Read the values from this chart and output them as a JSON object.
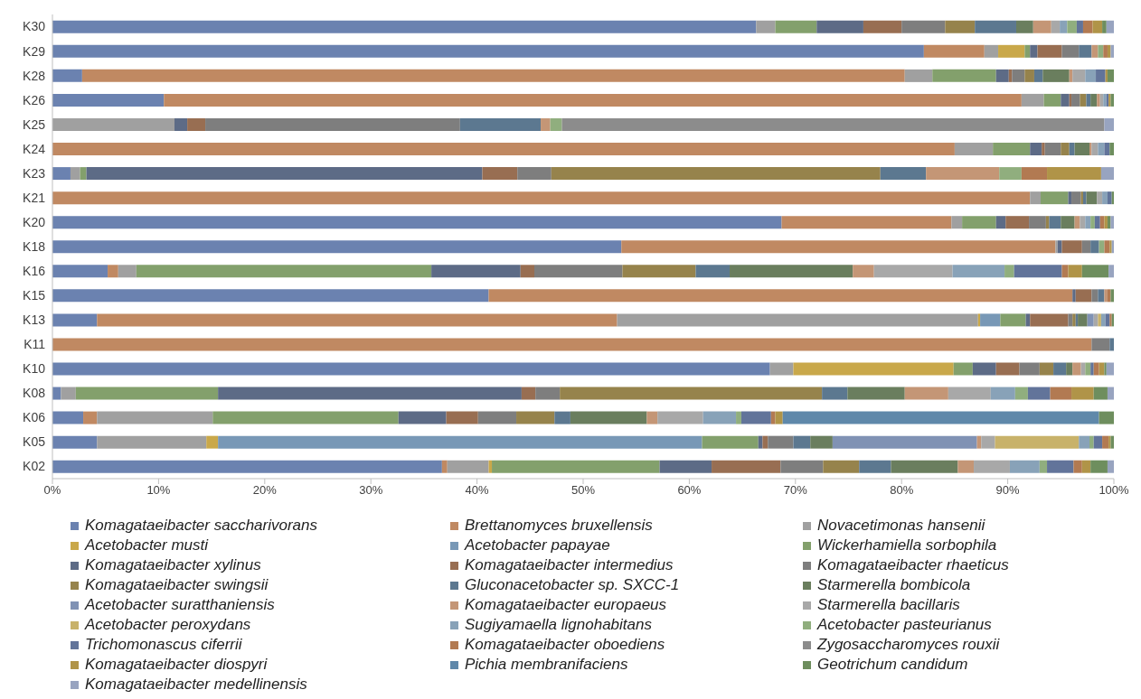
{
  "chart_data": {
    "type": "bar",
    "orientation": "horizontal",
    "stacked": true,
    "legend": "bottom",
    "categories": [
      "K30",
      "K29",
      "K28",
      "K26",
      "K25",
      "K24",
      "K23",
      "K21",
      "K20",
      "K18",
      "K16",
      "K15",
      "K13",
      "K11",
      "K10",
      "K08",
      "K06",
      "K05",
      "K02"
    ],
    "xlim": [
      0,
      100
    ],
    "xticks": [
      {
        "value": 0,
        "label": "0%"
      },
      {
        "value": 10,
        "label": "10%"
      },
      {
        "value": 20,
        "label": "20%"
      },
      {
        "value": 30,
        "label": "30%"
      },
      {
        "value": 40,
        "label": "40%"
      },
      {
        "value": 50,
        "label": "50%"
      },
      {
        "value": 60,
        "label": "60%"
      },
      {
        "value": 70,
        "label": "70%"
      },
      {
        "value": 80,
        "label": "80%"
      },
      {
        "value": 90,
        "label": "90%"
      },
      {
        "value": 100,
        "label": "100%"
      }
    ],
    "series": [
      {
        "name": "Komagataeibacter saccharivorans",
        "color": "#6b82b0",
        "values": [
          66.3,
          82.1,
          2.8,
          10.5,
          null,
          null,
          1.7,
          null,
          68.7,
          53.6,
          5.2,
          41.1,
          4.2,
          null,
          67.6,
          0.8,
          2.9,
          4.2,
          36.7
        ]
      },
      {
        "name": "Brettanomyces bruxellensis",
        "color": "#c08962",
        "values": [
          null,
          5.7,
          77.5,
          80.8,
          null,
          85.0,
          null,
          92.1,
          16.0,
          40.9,
          1.0,
          55.0,
          49.0,
          97.9,
          null,
          null,
          1.3,
          null,
          0.5
        ]
      },
      {
        "name": "Novacetimonas hansenii",
        "color": "#a0a0a0",
        "values": [
          1.8,
          1.3,
          2.6,
          2.1,
          11.5,
          3.6,
          0.9,
          1.0,
          1.0,
          0.2,
          1.7,
          null,
          34.0,
          null,
          2.2,
          1.4,
          10.9,
          10.3,
          3.9
        ]
      },
      {
        "name": "Acetobacter musti",
        "color": "#c9a84a",
        "values": [
          null,
          2.5,
          null,
          null,
          null,
          null,
          null,
          null,
          null,
          null,
          null,
          null,
          0.2,
          null,
          15.1,
          null,
          null,
          1.1,
          0.3
        ]
      },
      {
        "name": "Acetobacter papayae",
        "color": "#7898b6",
        "values": [
          null,
          null,
          null,
          null,
          null,
          null,
          null,
          null,
          null,
          null,
          null,
          null,
          1.9,
          null,
          null,
          null,
          null,
          45.6,
          null
        ]
      },
      {
        "name": "Wickerhamiella sorbophila",
        "color": "#83a06c",
        "values": [
          3.9,
          0.5,
          6.0,
          1.6,
          null,
          3.5,
          0.6,
          2.6,
          3.2,
          null,
          27.8,
          null,
          2.4,
          null,
          1.8,
          13.4,
          17.5,
          5.3,
          15.8
        ]
      },
      {
        "name": "Komagataeibacter xylinus",
        "color": "#5d6b86",
        "values": [
          4.4,
          0.7,
          1.2,
          0.8,
          1.2,
          1.1,
          37.3,
          0.3,
          0.9,
          0.4,
          8.4,
          0.3,
          0.4,
          null,
          2.2,
          28.6,
          4.5,
          0.4,
          4.9
        ]
      },
      {
        "name": "Komagataeibacter intermedius",
        "color": "#986e52",
        "values": [
          3.6,
          2.3,
          0.3,
          0.2,
          1.7,
          0.3,
          3.3,
          null,
          2.2,
          1.9,
          1.3,
          1.5,
          3.6,
          null,
          2.2,
          1.3,
          3.0,
          0.5,
          6.5
        ]
      },
      {
        "name": "Komagataeibacter rhaeticus",
        "color": "#7e7e7e",
        "values": [
          4.1,
          1.6,
          1.2,
          0.8,
          24.0,
          1.5,
          3.2,
          0.9,
          1.6,
          0.8,
          8.3,
          0.6,
          0.4,
          1.7,
          1.9,
          2.3,
          3.6,
          2.4,
          4.0
        ]
      },
      {
        "name": "Komagataeibacter swingsii",
        "color": "#96834c",
        "values": [
          2.8,
          null,
          0.9,
          0.6,
          null,
          0.8,
          31.0,
          0.2,
          0.3,
          null,
          6.9,
          null,
          0.3,
          null,
          1.3,
          24.7,
          3.6,
          null,
          3.4
        ]
      },
      {
        "name": "Gluconacetobacter sp. SXCC-1",
        "color": "#5c7890",
        "values": [
          3.9,
          1.2,
          0.8,
          0.4,
          7.6,
          0.5,
          4.3,
          0.3,
          1.1,
          0.8,
          3.2,
          0.6,
          0.2,
          0.4,
          1.2,
          2.4,
          1.5,
          1.6,
          3.0
        ]
      },
      {
        "name": "Starmerella bombicola",
        "color": "#6a7e5e",
        "values": [
          1.6,
          null,
          2.5,
          0.6,
          null,
          1.4,
          null,
          1.0,
          1.3,
          null,
          11.6,
          null,
          0.9,
          null,
          0.6,
          5.4,
          7.2,
          2.1,
          6.3
        ]
      },
      {
        "name": "Acetobacter suratthaniensis",
        "color": "#8092b4",
        "values": [
          null,
          null,
          null,
          null,
          null,
          null,
          null,
          null,
          null,
          null,
          null,
          null,
          0.6,
          null,
          null,
          null,
          null,
          13.6,
          null
        ]
      },
      {
        "name": "Komagataeibacter europaeus",
        "color": "#c49676",
        "values": [
          1.7,
          0.6,
          0.3,
          0.3,
          0.9,
          0.2,
          6.9,
          null,
          0.5,
          null,
          2.0,
          0.3,
          null,
          null,
          0.8,
          4.1,
          1.0,
          0.4,
          1.5
        ]
      },
      {
        "name": "Starmerella bacillaris",
        "color": "#a8a8a8",
        "values": [
          0.8,
          null,
          1.2,
          0.3,
          null,
          0.6,
          null,
          0.5,
          0.5,
          null,
          7.4,
          null,
          0.4,
          null,
          0.4,
          4.0,
          4.3,
          1.3,
          3.4
        ]
      },
      {
        "name": "Acetobacter peroxydans",
        "color": "#c8b26a",
        "values": [
          null,
          null,
          null,
          null,
          null,
          null,
          null,
          null,
          null,
          null,
          null,
          null,
          0.3,
          null,
          null,
          null,
          null,
          7.9,
          null
        ]
      },
      {
        "name": "Sugiyamaella lignohabitans",
        "color": "#88a2b8",
        "values": [
          0.7,
          null,
          1.0,
          0.3,
          null,
          0.6,
          null,
          0.5,
          0.5,
          null,
          4.9,
          null,
          0.4,
          null,
          null,
          2.3,
          3.1,
          1.0,
          2.8
        ]
      },
      {
        "name": "Acetobacter pasteurianus",
        "color": "#90ae7e",
        "values": [
          0.9,
          0.5,
          null,
          null,
          1.1,
          null,
          2.1,
          null,
          0.4,
          0.5,
          0.9,
          null,
          null,
          null,
          0.5,
          1.2,
          0.5,
          0.4,
          0.7
        ]
      },
      {
        "name": "Trichomonascus ciferrii",
        "color": "#62749a",
        "values": [
          0.6,
          null,
          0.9,
          0.2,
          null,
          0.5,
          null,
          0.4,
          0.5,
          null,
          4.5,
          null,
          0.4,
          null,
          0.3,
          2.1,
          2.8,
          0.8,
          2.5
        ]
      },
      {
        "name": "Komagataeibacter oboediens",
        "color": "#b27a52",
        "values": [
          0.9,
          0.4,
          null,
          null,
          null,
          null,
          2.4,
          null,
          0.4,
          0.5,
          0.6,
          0.3,
          0.2,
          null,
          0.5,
          2.0,
          0.4,
          0.6,
          0.8
        ]
      },
      {
        "name": "Zygosaccharomyces rouxii",
        "color": "#8c8c8c",
        "values": [
          null,
          null,
          null,
          null,
          51.1,
          null,
          null,
          null,
          null,
          null,
          null,
          null,
          null,
          null,
          null,
          null,
          null,
          null,
          null
        ]
      },
      {
        "name": "Komagataeibacter diospyri",
        "color": "#b09448",
        "values": [
          0.9,
          0.3,
          0.2,
          0.2,
          null,
          null,
          5.1,
          null,
          0.3,
          0.2,
          1.3,
          null,
          null,
          null,
          0.5,
          2.1,
          0.7,
          0.2,
          0.8
        ]
      },
      {
        "name": "Pichia membranifaciens",
        "color": "#5f88aa",
        "values": [
          null,
          null,
          null,
          null,
          null,
          null,
          null,
          null,
          null,
          null,
          null,
          null,
          null,
          null,
          null,
          null,
          29.8,
          null,
          null
        ]
      },
      {
        "name": "Geotrichum candidum",
        "color": "#6e8e5e",
        "values": [
          0.4,
          null,
          0.6,
          0.3,
          null,
          0.4,
          null,
          0.2,
          0.3,
          null,
          2.5,
          0.3,
          0.2,
          null,
          0.2,
          1.3,
          1.4,
          0.3,
          1.6
        ]
      },
      {
        "name": "Komagataeibacter medellinensis",
        "color": "#98a4c0",
        "values": [
          0.7,
          0.3,
          null,
          null,
          0.9,
          null,
          1.2,
          null,
          0.3,
          0.2,
          0.5,
          null,
          null,
          null,
          0.7,
          0.6,
          null,
          null,
          0.6
        ]
      }
    ]
  }
}
